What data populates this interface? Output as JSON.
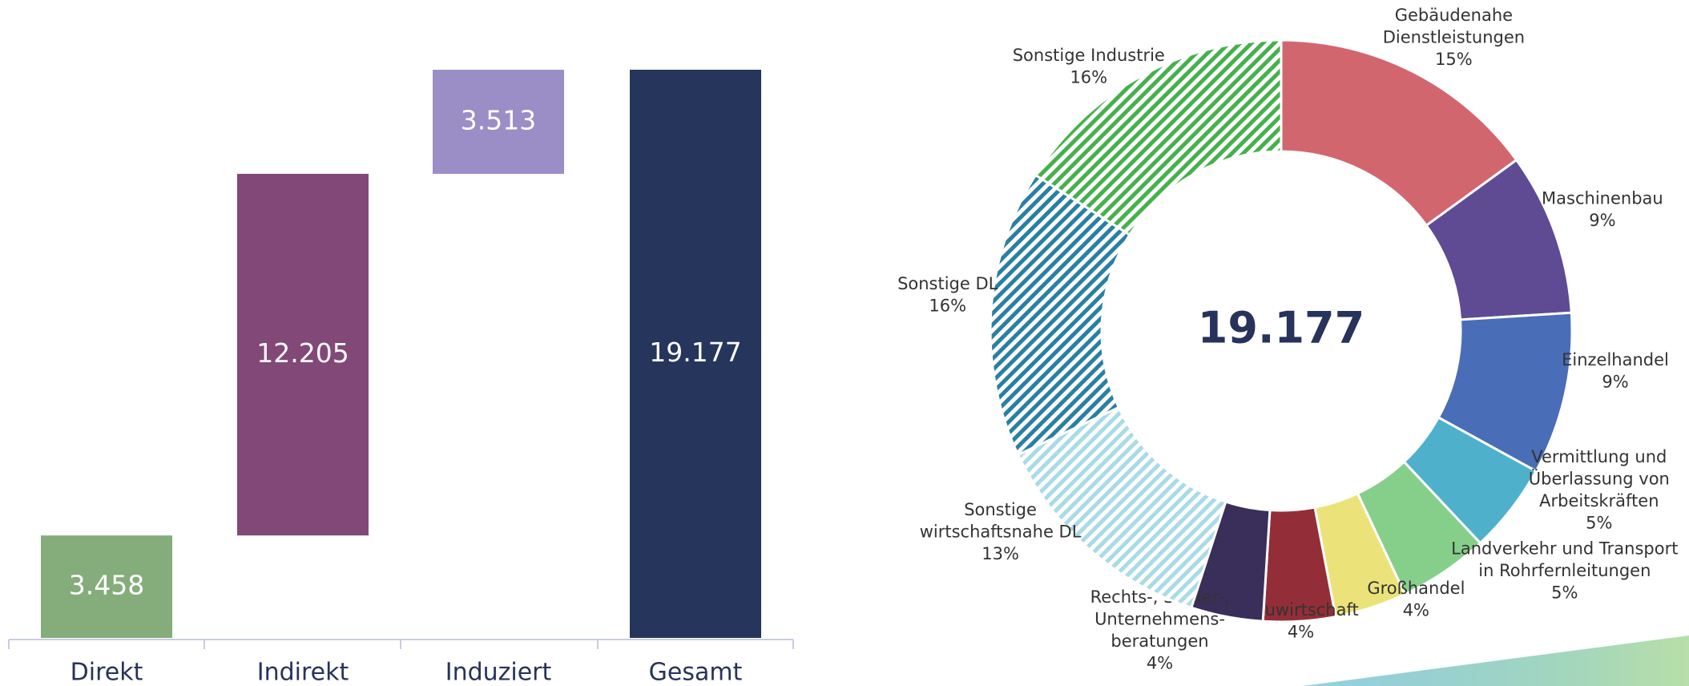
{
  "chart_data": [
    {
      "type": "waterfall",
      "categories": [
        "Direkt",
        "Indirekt",
        "Induziert",
        "Gesamt"
      ],
      "values": [
        3458,
        12205,
        3513,
        19177
      ],
      "value_labels": [
        "3.458",
        "12.205",
        "3.513",
        "19.177"
      ],
      "totals": [
        false,
        false,
        false,
        true
      ],
      "colors": [
        "#84ad7b",
        "#824877",
        "#9b8dc6",
        "#25355c"
      ]
    },
    {
      "type": "donut",
      "center_label": "19.177",
      "categories": [
        [
          "Gebäudenahe",
          "Dienstleistungen"
        ],
        [
          "Maschinenbau"
        ],
        [
          "Einzelhandel"
        ],
        [
          "Vermittlung und",
          "Überlassung von",
          "Arbeitskräften"
        ],
        [
          "Landverkehr und Transport",
          "in Rohrfernleitungen"
        ],
        [
          "Großhandel"
        ],
        [
          "Bauwirtschaft"
        ],
        [
          "Rechts-, Steuer-,",
          "Unternehmens-",
          "beratungen"
        ],
        [
          "Sonstige",
          "wirtschaftsnahe DL"
        ],
        [
          "Sonstige DL"
        ],
        [
          "Sonstige Industrie"
        ]
      ],
      "values": [
        15,
        9,
        9,
        5,
        5,
        4,
        4,
        4,
        13,
        16,
        16
      ],
      "value_labels": [
        "15%",
        "9%",
        "9%",
        "5%",
        "5%",
        "4%",
        "4%",
        "4%",
        "13%",
        "16%",
        "16%"
      ],
      "colors": [
        "#d2666f",
        "#5e4b94",
        "#4a6db8",
        "#4fb0cc",
        "#86cf8a",
        "#ebe37a",
        "#932e38",
        "#3a2e5a",
        "#a9dbe6",
        "#2a7fa3",
        "#46b04c"
      ],
      "hatched": [
        false,
        false,
        false,
        false,
        false,
        false,
        false,
        false,
        true,
        true,
        true
      ]
    }
  ]
}
